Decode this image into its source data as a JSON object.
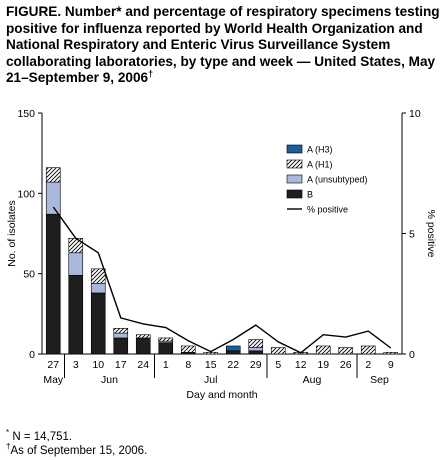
{
  "figure": {
    "title": "FIGURE. Number* and percentage of respiratory specimens testing positive for influenza reported by World Health Organization and National Respiratory and Enteric Virus Surveillance System collaborating laboratories, by type and week — United States, May 21–September 9, 2006",
    "title_mark": "†"
  },
  "footnotes": [
    {
      "mark": "*",
      "text": " N = 14,751."
    },
    {
      "mark": "†",
      "text": "As of September 15, 2006."
    }
  ],
  "colors": {
    "A (H3)": "#1b5f9a",
    "A (unsubtyped)": "#a9b8dc",
    "B": "#1e1e1e",
    "A (H1)": "hatch"
  },
  "chart_data": {
    "type": "bar",
    "stacked": true,
    "xlabel": "Day and month",
    "ylabel": "No. of isolates",
    "y2label": "% positive",
    "ylim": [
      0,
      150
    ],
    "y2lim": [
      0,
      10
    ],
    "yticks": [
      0,
      50,
      100,
      150
    ],
    "y2ticks": [
      0,
      5,
      10
    ],
    "categories": [
      "27",
      "3",
      "10",
      "17",
      "24",
      "1",
      "8",
      "15",
      "22",
      "29",
      "5",
      "12",
      "19",
      "26",
      "2",
      "9"
    ],
    "months": [
      {
        "label": "May",
        "start": 0,
        "end": 0
      },
      {
        "label": "Jun",
        "start": 1,
        "end": 4
      },
      {
        "label": "Jul",
        "start": 5,
        "end": 9
      },
      {
        "label": "Aug",
        "start": 10,
        "end": 13
      },
      {
        "label": "Sep",
        "start": 14,
        "end": 15
      }
    ],
    "series": [
      {
        "name": "B",
        "values": [
          87,
          49,
          38,
          10,
          10,
          7,
          1,
          0,
          2,
          2,
          0,
          0,
          0,
          0,
          0,
          0
        ]
      },
      {
        "name": "A (unsubtyped)",
        "values": [
          20,
          14,
          6,
          3,
          0,
          1,
          0,
          0,
          0,
          2,
          0,
          0,
          0,
          0,
          0,
          0
        ]
      },
      {
        "name": "A (H1)",
        "values": [
          9,
          9,
          9,
          3,
          2,
          2,
          4,
          1,
          0,
          5,
          4,
          1,
          5,
          4,
          5,
          1
        ]
      },
      {
        "name": "A (H3)",
        "values": [
          0,
          0,
          0,
          0,
          0,
          0,
          0,
          0,
          3,
          0,
          0,
          0,
          0,
          0,
          0,
          0
        ]
      }
    ],
    "line": {
      "name": "% positive",
      "values": [
        6.1,
        4.8,
        4.2,
        1.5,
        1.25,
        1.1,
        0.55,
        0.1,
        0.6,
        1.2,
        0.5,
        0.05,
        0.8,
        0.7,
        0.95,
        0.25
      ]
    },
    "legend": {
      "position": "top-right",
      "order": [
        "A (H3)",
        "A (H1)",
        "A (unsubtyped)",
        "B",
        "% positive"
      ]
    }
  }
}
